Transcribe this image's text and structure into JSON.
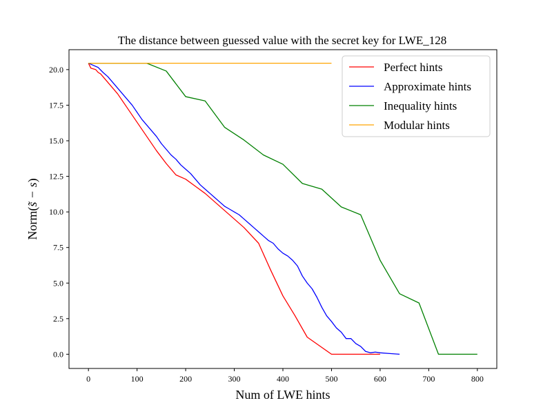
{
  "chart_data": {
    "type": "line",
    "title": "The distance between guessed value with the secret key for LWE_128",
    "xlabel": "Num of LWE hints",
    "ylabel_prefix": "Norm(",
    "ylabel_math": "s̃ − s",
    "ylabel_suffix": ")",
    "xlim": [
      -40,
      840
    ],
    "ylim": [
      -1.0,
      21.4
    ],
    "xticks": [
      0,
      100,
      200,
      300,
      400,
      500,
      600,
      700,
      800
    ],
    "yticks": [
      0.0,
      2.5,
      5.0,
      7.5,
      10.0,
      12.5,
      15.0,
      17.5,
      20.0
    ],
    "xtick_labels": [
      "0",
      "100",
      "200",
      "300",
      "400",
      "500",
      "600",
      "700",
      "800"
    ],
    "ytick_labels": [
      "0.0",
      "2.5",
      "5.0",
      "7.5",
      "10.0",
      "12.5",
      "15.0",
      "17.5",
      "20.0"
    ],
    "grid": false,
    "legend_position": "top-right",
    "series": [
      {
        "name": "Perfect hints",
        "color": "#ff0000",
        "points": [
          [
            0,
            20.45
          ],
          [
            5,
            20.1
          ],
          [
            15,
            20.0
          ],
          [
            20,
            19.8
          ],
          [
            25,
            19.7
          ],
          [
            30,
            19.5
          ],
          [
            40,
            19.1
          ],
          [
            50,
            18.7
          ],
          [
            60,
            18.3
          ],
          [
            70,
            17.8
          ],
          [
            80,
            17.3
          ],
          [
            100,
            16.3
          ],
          [
            120,
            15.3
          ],
          [
            140,
            14.3
          ],
          [
            160,
            13.4
          ],
          [
            180,
            12.6
          ],
          [
            200,
            12.3
          ],
          [
            220,
            11.8
          ],
          [
            240,
            11.3
          ],
          [
            260,
            10.7
          ],
          [
            280,
            10.1
          ],
          [
            300,
            9.5
          ],
          [
            320,
            8.9
          ],
          [
            350,
            7.8
          ],
          [
            375,
            5.9
          ],
          [
            400,
            4.1
          ],
          [
            425,
            2.7
          ],
          [
            450,
            1.2
          ],
          [
            475,
            0.6
          ],
          [
            500,
            0.0
          ],
          [
            550,
            0.0
          ],
          [
            600,
            0.0
          ]
        ]
      },
      {
        "name": "Approximate hints",
        "color": "#0000ff",
        "points": [
          [
            0,
            20.45
          ],
          [
            10,
            20.3
          ],
          [
            20,
            20.15
          ],
          [
            30,
            19.8
          ],
          [
            40,
            19.5
          ],
          [
            50,
            19.1
          ],
          [
            60,
            18.7
          ],
          [
            70,
            18.3
          ],
          [
            80,
            17.9
          ],
          [
            90,
            17.5
          ],
          [
            100,
            17.0
          ],
          [
            110,
            16.5
          ],
          [
            120,
            16.1
          ],
          [
            130,
            15.7
          ],
          [
            140,
            15.3
          ],
          [
            150,
            14.8
          ],
          [
            160,
            14.4
          ],
          [
            170,
            14.0
          ],
          [
            180,
            13.7
          ],
          [
            190,
            13.3
          ],
          [
            200,
            13.0
          ],
          [
            210,
            12.7
          ],
          [
            220,
            12.3
          ],
          [
            230,
            11.9
          ],
          [
            240,
            11.6
          ],
          [
            250,
            11.3
          ],
          [
            260,
            11.0
          ],
          [
            270,
            10.7
          ],
          [
            280,
            10.4
          ],
          [
            290,
            10.2
          ],
          [
            300,
            10.0
          ],
          [
            310,
            9.8
          ],
          [
            320,
            9.5
          ],
          [
            330,
            9.2
          ],
          [
            340,
            8.9
          ],
          [
            350,
            8.6
          ],
          [
            360,
            8.3
          ],
          [
            370,
            8.0
          ],
          [
            380,
            7.8
          ],
          [
            390,
            7.4
          ],
          [
            400,
            7.1
          ],
          [
            410,
            6.9
          ],
          [
            420,
            6.6
          ],
          [
            430,
            6.2
          ],
          [
            440,
            5.5
          ],
          [
            450,
            5.0
          ],
          [
            460,
            4.6
          ],
          [
            470,
            4.0
          ],
          [
            480,
            3.3
          ],
          [
            490,
            2.7
          ],
          [
            500,
            2.3
          ],
          [
            510,
            1.85
          ],
          [
            520,
            1.55
          ],
          [
            530,
            1.1
          ],
          [
            540,
            1.1
          ],
          [
            550,
            0.75
          ],
          [
            560,
            0.55
          ],
          [
            570,
            0.2
          ],
          [
            580,
            0.1
          ],
          [
            590,
            0.15
          ],
          [
            600,
            0.1
          ],
          [
            620,
            0.05
          ],
          [
            640,
            0.0
          ]
        ]
      },
      {
        "name": "Inequality hints",
        "color": "#008000",
        "points": [
          [
            0,
            20.45
          ],
          [
            120,
            20.45
          ],
          [
            160,
            19.9
          ],
          [
            200,
            18.1
          ],
          [
            240,
            17.8
          ],
          [
            280,
            15.95
          ],
          [
            320,
            15.05
          ],
          [
            360,
            14.0
          ],
          [
            400,
            13.35
          ],
          [
            440,
            12.0
          ],
          [
            480,
            11.6
          ],
          [
            520,
            10.35
          ],
          [
            560,
            9.8
          ],
          [
            600,
            6.6
          ],
          [
            640,
            4.25
          ],
          [
            680,
            3.6
          ],
          [
            720,
            0.0
          ],
          [
            760,
            0.0
          ],
          [
            800,
            0.0
          ]
        ]
      },
      {
        "name": "Modular hints",
        "color": "#ffa500",
        "points": [
          [
            0,
            20.45
          ],
          [
            100,
            20.45
          ],
          [
            200,
            20.45
          ],
          [
            300,
            20.45
          ],
          [
            400,
            20.45
          ],
          [
            500,
            20.45
          ]
        ]
      }
    ]
  }
}
